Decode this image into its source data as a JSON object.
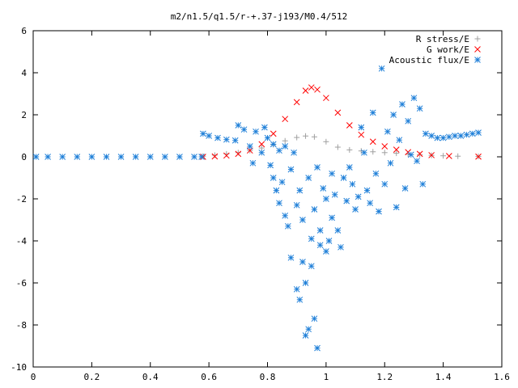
{
  "chart_data": {
    "type": "scatter",
    "title": "m2/n1.5/q1.5/r-+.37-j193/M0.4/512",
    "xlabel": "",
    "ylabel": "",
    "xlim": [
      0,
      1.6
    ],
    "ylim": [
      -10,
      6
    ],
    "x_ticks": [
      "0",
      "0.2",
      "0.4",
      "0.6",
      "0.8",
      "1",
      "1.2",
      "1.4",
      "1.6"
    ],
    "y_ticks": [
      "6",
      "4",
      "2",
      "0",
      "-2",
      "-4",
      "-6",
      "-8",
      "-10"
    ],
    "grid": false,
    "legend_position": "top-right",
    "series": [
      {
        "name": "R stress/E",
        "marker": "+",
        "color": "#a0a0a0",
        "points": [
          [
            0.58,
            0.03
          ],
          [
            0.62,
            0.08
          ],
          [
            0.66,
            0.14
          ],
          [
            0.7,
            0.2
          ],
          [
            0.74,
            0.3
          ],
          [
            0.78,
            0.42
          ],
          [
            0.82,
            0.58
          ],
          [
            0.86,
            0.76
          ],
          [
            0.9,
            0.92
          ],
          [
            0.93,
            0.99
          ],
          [
            0.96,
            0.95
          ],
          [
            1.0,
            0.72
          ],
          [
            1.04,
            0.46
          ],
          [
            1.08,
            0.33
          ],
          [
            1.12,
            0.28
          ],
          [
            1.16,
            0.24
          ],
          [
            1.2,
            0.2
          ],
          [
            1.24,
            0.17
          ],
          [
            1.28,
            0.13
          ],
          [
            1.32,
            0.1
          ],
          [
            1.36,
            0.07
          ],
          [
            1.4,
            0.05
          ],
          [
            1.45,
            0.03
          ],
          [
            1.52,
            0.02
          ]
        ]
      },
      {
        "name": "G work/E",
        "marker": "x",
        "color": "#ff0000",
        "points": [
          [
            0.58,
            0.0
          ],
          [
            0.62,
            0.02
          ],
          [
            0.66,
            0.06
          ],
          [
            0.7,
            0.14
          ],
          [
            0.74,
            0.3
          ],
          [
            0.78,
            0.6
          ],
          [
            0.82,
            1.1
          ],
          [
            0.86,
            1.8
          ],
          [
            0.9,
            2.6
          ],
          [
            0.93,
            3.15
          ],
          [
            0.95,
            3.3
          ],
          [
            0.97,
            3.2
          ],
          [
            1.0,
            2.8
          ],
          [
            1.04,
            2.1
          ],
          [
            1.08,
            1.5
          ],
          [
            1.12,
            1.05
          ],
          [
            1.16,
            0.72
          ],
          [
            1.2,
            0.5
          ],
          [
            1.24,
            0.34
          ],
          [
            1.28,
            0.22
          ],
          [
            1.32,
            0.14
          ],
          [
            1.36,
            0.08
          ],
          [
            1.42,
            0.04
          ],
          [
            1.52,
            0.01
          ]
        ]
      },
      {
        "name": "Acoustic flux/E",
        "marker": "*",
        "color": "#1e7fd8",
        "points": [
          [
            0.01,
            0.0
          ],
          [
            0.05,
            0.0
          ],
          [
            0.1,
            0.0
          ],
          [
            0.15,
            0.0
          ],
          [
            0.2,
            0.0
          ],
          [
            0.25,
            0.0
          ],
          [
            0.3,
            0.0
          ],
          [
            0.35,
            0.0
          ],
          [
            0.4,
            0.0
          ],
          [
            0.45,
            0.0
          ],
          [
            0.5,
            0.0
          ],
          [
            0.55,
            0.0
          ],
          [
            0.575,
            0.0
          ],
          [
            0.58,
            1.1
          ],
          [
            0.6,
            1.0
          ],
          [
            0.63,
            0.9
          ],
          [
            0.66,
            0.82
          ],
          [
            0.69,
            0.78
          ],
          [
            0.7,
            1.5
          ],
          [
            0.72,
            1.3
          ],
          [
            0.74,
            0.5
          ],
          [
            0.75,
            -0.3
          ],
          [
            0.76,
            1.2
          ],
          [
            0.78,
            0.2
          ],
          [
            0.79,
            1.4
          ],
          [
            0.8,
            0.9
          ],
          [
            0.81,
            -0.4
          ],
          [
            0.82,
            0.6
          ],
          [
            0.82,
            -1.0
          ],
          [
            0.83,
            -1.6
          ],
          [
            0.84,
            0.3
          ],
          [
            0.84,
            -2.2
          ],
          [
            0.85,
            -1.2
          ],
          [
            0.86,
            0.5
          ],
          [
            0.86,
            -2.8
          ],
          [
            0.87,
            -3.3
          ],
          [
            0.88,
            -0.6
          ],
          [
            0.88,
            -4.8
          ],
          [
            0.89,
            0.2
          ],
          [
            0.9,
            -2.3
          ],
          [
            0.9,
            -6.3
          ],
          [
            0.91,
            -6.8
          ],
          [
            0.91,
            -1.6
          ],
          [
            0.92,
            -3.0
          ],
          [
            0.92,
            -5.0
          ],
          [
            0.93,
            -6.0
          ],
          [
            0.93,
            -8.5
          ],
          [
            0.94,
            -8.2
          ],
          [
            0.94,
            -1.0
          ],
          [
            0.95,
            -3.9
          ],
          [
            0.95,
            -5.2
          ],
          [
            0.96,
            -7.7
          ],
          [
            0.96,
            -2.5
          ],
          [
            0.97,
            -9.1
          ],
          [
            0.97,
            -0.5
          ],
          [
            0.98,
            -4.2
          ],
          [
            0.98,
            -3.5
          ],
          [
            0.99,
            -1.5
          ],
          [
            1.0,
            -2.0
          ],
          [
            1.0,
            -4.5
          ],
          [
            1.01,
            -4.0
          ],
          [
            1.02,
            -0.8
          ],
          [
            1.02,
            -2.9
          ],
          [
            1.03,
            -1.8
          ],
          [
            1.04,
            -3.5
          ],
          [
            1.05,
            -4.3
          ],
          [
            1.06,
            -1.0
          ],
          [
            1.07,
            -2.1
          ],
          [
            1.08,
            -0.5
          ],
          [
            1.09,
            -1.3
          ],
          [
            1.1,
            -2.5
          ],
          [
            1.11,
            -1.9
          ],
          [
            1.12,
            1.4
          ],
          [
            1.13,
            0.2
          ],
          [
            1.14,
            -1.6
          ],
          [
            1.15,
            -2.2
          ],
          [
            1.16,
            2.1
          ],
          [
            1.17,
            -0.8
          ],
          [
            1.18,
            -2.6
          ],
          [
            1.19,
            4.2
          ],
          [
            1.2,
            -1.3
          ],
          [
            1.21,
            1.2
          ],
          [
            1.22,
            -0.3
          ],
          [
            1.23,
            2.0
          ],
          [
            1.24,
            -2.4
          ],
          [
            1.25,
            0.8
          ],
          [
            1.26,
            2.5
          ],
          [
            1.27,
            -1.5
          ],
          [
            1.28,
            1.7
          ],
          [
            1.29,
            0.1
          ],
          [
            1.3,
            2.8
          ],
          [
            1.31,
            -0.2
          ],
          [
            1.32,
            2.3
          ],
          [
            1.33,
            -1.3
          ],
          [
            1.34,
            1.1
          ],
          [
            1.36,
            1.0
          ],
          [
            1.38,
            0.9
          ],
          [
            1.4,
            0.9
          ],
          [
            1.42,
            0.95
          ],
          [
            1.44,
            1.0
          ],
          [
            1.46,
            1.0
          ],
          [
            1.48,
            1.05
          ],
          [
            1.5,
            1.1
          ],
          [
            1.52,
            1.15
          ]
        ]
      }
    ]
  }
}
